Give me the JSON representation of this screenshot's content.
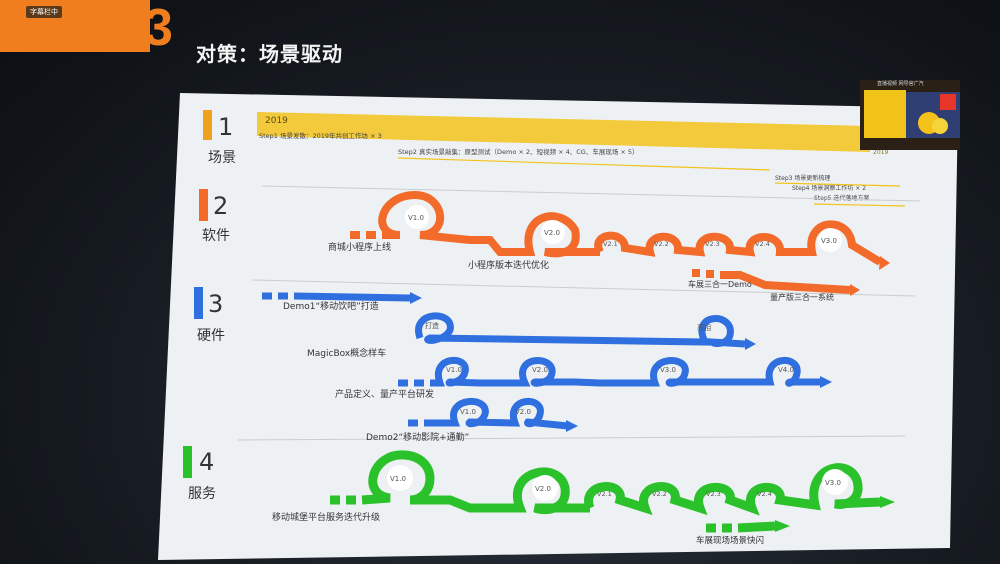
{
  "header": {
    "tab_label": "字幕栏中",
    "number": "3",
    "title": "对策：场景驱动"
  },
  "pip": {
    "top_text": "直播视频 网导官广汽"
  },
  "slide": {
    "year": "2019",
    "year_right": "2019",
    "steps": [
      "Step1 场景发散：2019年共创工作坊 × 3",
      "Step2 真实场景敲集：原型测试（Demo × 2、短视频 × 4、CG、车展现场 × 5）",
      "Step3 场景更新梳理",
      "Step4 场景洞察工作坊 × 2",
      "Step5 迭代落地方案"
    ],
    "sections": [
      {
        "num": "1",
        "label": "场景"
      },
      {
        "num": "2",
        "label": "软件"
      },
      {
        "num": "3",
        "label": "硬件"
      },
      {
        "num": "4",
        "label": "服务"
      }
    ],
    "software": {
      "versions": [
        "V1.0",
        "V2.0",
        "V2.1",
        "V2.2",
        "V2.3",
        "V2.4",
        "V3.0"
      ],
      "labels": [
        "商城小程序上线",
        "小程序版本迭代优化",
        "车展三合一Demo",
        "量产版三合一系统"
      ]
    },
    "hardware": {
      "labels": [
        "Demo1“移动饮吧”打造",
        "MagicBox概念样车",
        "产品定义、量产平台研发",
        "Demo2“移动影院+通勤”"
      ],
      "badges": [
        "打造",
        "亮相"
      ],
      "versions_a": [
        "V1.0",
        "V2.0",
        "V3.0",
        "V4.0"
      ],
      "versions_b": [
        "V1.0",
        "V2.0"
      ]
    },
    "service": {
      "versions": [
        "V1.0",
        "V2.0",
        "V2.1",
        "V2.2",
        "V2.3",
        "V2.4",
        "V3.0"
      ],
      "labels": [
        "移动城堡平台服务迭代升级",
        "车展现场场景快闪"
      ]
    },
    "colors": {
      "orange": "#f26b2a",
      "blue": "#2f6fe0",
      "green": "#2ac12a",
      "yellow": "#f2c31b",
      "sec1": "#f0a21f",
      "sec2": "#f26b2a",
      "sec3": "#2f6fe0",
      "sec4": "#2ac12a"
    }
  }
}
